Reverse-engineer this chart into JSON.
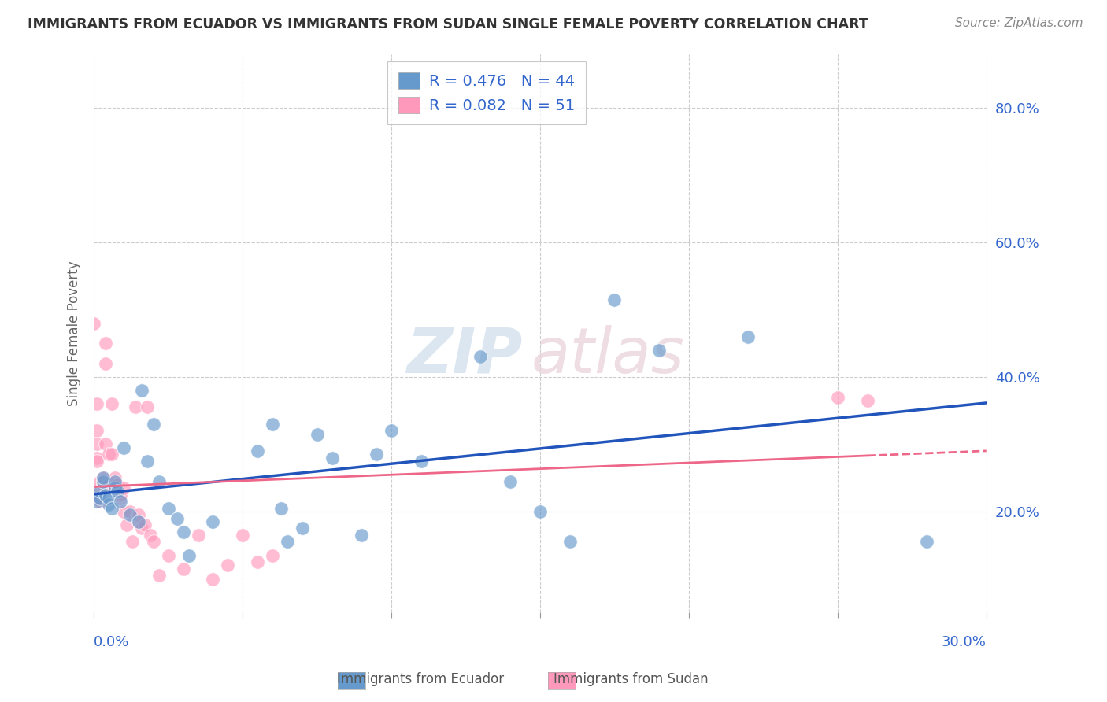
{
  "title": "IMMIGRANTS FROM ECUADOR VS IMMIGRANTS FROM SUDAN SINGLE FEMALE POVERTY CORRELATION CHART",
  "source": "Source: ZipAtlas.com",
  "ylabel": "Single Female Poverty",
  "legend_r_ecuador": "R = 0.476",
  "legend_n_ecuador": "N = 44",
  "legend_r_sudan": "R = 0.082",
  "legend_n_sudan": "N = 51",
  "color_ecuador": "#6699CC",
  "color_sudan": "#FF99BB",
  "color_trendline_ecuador": "#2255BB",
  "color_trendline_sudan": "#EE6688",
  "watermark_zip": "ZIP",
  "watermark_atlas": "atlas",
  "xlim": [
    0.0,
    0.3
  ],
  "ylim": [
    0.05,
    0.88
  ],
  "ecuador_x": [
    0.001,
    0.002,
    0.002,
    0.003,
    0.003,
    0.004,
    0.005,
    0.005,
    0.006,
    0.007,
    0.007,
    0.008,
    0.009,
    0.01,
    0.012,
    0.015,
    0.016,
    0.018,
    0.02,
    0.022,
    0.025,
    0.028,
    0.03,
    0.032,
    0.04,
    0.055,
    0.06,
    0.063,
    0.065,
    0.07,
    0.075,
    0.08,
    0.09,
    0.095,
    0.1,
    0.11,
    0.13,
    0.14,
    0.15,
    0.16,
    0.175,
    0.19,
    0.22,
    0.28
  ],
  "ecuador_y": [
    0.215,
    0.22,
    0.23,
    0.245,
    0.25,
    0.225,
    0.21,
    0.22,
    0.205,
    0.235,
    0.245,
    0.23,
    0.215,
    0.295,
    0.195,
    0.185,
    0.38,
    0.275,
    0.33,
    0.245,
    0.205,
    0.19,
    0.17,
    0.135,
    0.185,
    0.29,
    0.33,
    0.205,
    0.155,
    0.175,
    0.315,
    0.28,
    0.165,
    0.285,
    0.32,
    0.275,
    0.43,
    0.245,
    0.2,
    0.155,
    0.515,
    0.44,
    0.46,
    0.155
  ],
  "sudan_x": [
    0.0,
    0.001,
    0.001,
    0.001,
    0.001,
    0.001,
    0.002,
    0.002,
    0.002,
    0.002,
    0.003,
    0.003,
    0.003,
    0.004,
    0.004,
    0.004,
    0.005,
    0.005,
    0.005,
    0.006,
    0.006,
    0.007,
    0.007,
    0.008,
    0.008,
    0.009,
    0.009,
    0.01,
    0.01,
    0.011,
    0.012,
    0.013,
    0.014,
    0.015,
    0.015,
    0.016,
    0.017,
    0.018,
    0.019,
    0.02,
    0.022,
    0.025,
    0.03,
    0.035,
    0.04,
    0.045,
    0.05,
    0.055,
    0.06,
    0.25,
    0.26
  ],
  "sudan_y": [
    0.48,
    0.36,
    0.32,
    0.3,
    0.28,
    0.275,
    0.235,
    0.245,
    0.22,
    0.215,
    0.24,
    0.245,
    0.25,
    0.42,
    0.45,
    0.3,
    0.245,
    0.24,
    0.285,
    0.36,
    0.285,
    0.235,
    0.25,
    0.235,
    0.24,
    0.22,
    0.225,
    0.235,
    0.2,
    0.18,
    0.2,
    0.155,
    0.355,
    0.195,
    0.185,
    0.175,
    0.18,
    0.355,
    0.165,
    0.155,
    0.105,
    0.135,
    0.115,
    0.165,
    0.1,
    0.12,
    0.165,
    0.125,
    0.135,
    0.37,
    0.365
  ]
}
